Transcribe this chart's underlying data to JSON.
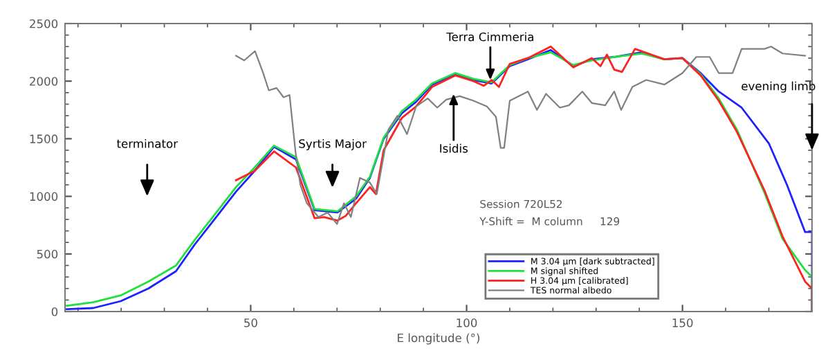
{
  "chart_data": {
    "type": "line",
    "xlabel": "E longitude (°)",
    "xlim": [
      7,
      180
    ],
    "ylim": [
      0,
      2500
    ],
    "xticks": [
      50,
      100,
      150
    ],
    "yticks": [
      0,
      500,
      1000,
      1500,
      2000,
      2500
    ],
    "grid": false,
    "legend": "bottom right",
    "marker": "none",
    "line_style": "solid",
    "series": [
      {
        "name": "M 3.04 μm [dark subtracted]",
        "color": "#2020ff",
        "x": [
          7.4,
          13.5,
          19.9,
          26.3,
          32.7,
          37,
          41.2,
          46.6,
          50.9,
          55.4,
          60.5,
          64.8,
          70.1,
          74.4,
          77.6,
          80.8,
          85,
          88.3,
          92,
          97.4,
          101.6,
          105.8,
          110,
          114.2,
          119.5,
          124.7,
          129,
          134.2,
          140.5,
          145.8,
          150,
          154.2,
          158.4,
          163.7,
          170,
          174.2,
          178.4,
          180,
          180
        ],
        "values": [
          20,
          30,
          90,
          200,
          350,
          580,
          780,
          1040,
          1220,
          1430,
          1320,
          880,
          860,
          980,
          1160,
          1500,
          1720,
          1820,
          1970,
          2060,
          2010,
          1980,
          2130,
          2190,
          2270,
          2130,
          2190,
          2210,
          2250,
          2190,
          2200,
          2070,
          1910,
          1770,
          1460,
          1100,
          690,
          690,
          0
        ]
      },
      {
        "name": "M signal shifted",
        "color": "#20e040",
        "x": [
          7.4,
          13.5,
          19.9,
          26.3,
          32.7,
          37,
          41.2,
          46.6,
          50.9,
          55.4,
          60.5,
          64.8,
          70.1,
          74.4,
          77.6,
          80.8,
          85,
          88.3,
          92,
          97.4,
          101.6,
          105.8,
          110,
          114.2,
          119.5,
          124.7,
          129,
          134.2,
          140.5,
          145.8,
          150,
          154.2,
          158.4,
          162.6,
          169,
          173.2,
          178.4,
          180,
          180
        ],
        "values": [
          50,
          80,
          140,
          260,
          400,
          620,
          820,
          1080,
          1250,
          1440,
          1340,
          890,
          870,
          1000,
          1170,
          1510,
          1740,
          1840,
          1980,
          2070,
          2020,
          1990,
          2140,
          2200,
          2250,
          2140,
          2180,
          2210,
          2240,
          2190,
          2200,
          2060,
          1850,
          1580,
          1030,
          630,
          360,
          300,
          0
        ]
      },
      {
        "name": "H 3.04 μm [calibrated]",
        "color": "#ff2020",
        "x": [
          46.6,
          50.9,
          55.4,
          60.5,
          64.8,
          67,
          70.1,
          72,
          74.4,
          77.6,
          79,
          80.8,
          85,
          88.3,
          92,
          97.4,
          101.6,
          104,
          105.8,
          107.5,
          110,
          114.2,
          119.5,
          124.7,
          129,
          131,
          132.5,
          134.2,
          136,
          139,
          145.8,
          150,
          154.2,
          158.4,
          162.6,
          169,
          173.2,
          178.4,
          180,
          180
        ],
        "values": [
          1140,
          1220,
          1390,
          1250,
          810,
          820,
          790,
          830,
          940,
          1080,
          1020,
          1400,
          1680,
          1780,
          1950,
          2050,
          2000,
          1960,
          2010,
          1950,
          2150,
          2200,
          2300,
          2120,
          2200,
          2130,
          2230,
          2100,
          2080,
          2280,
          2190,
          2200,
          2050,
          1830,
          1560,
          1050,
          650,
          260,
          200,
          0
        ]
      },
      {
        "name": "TES normal albedo",
        "color": "#808080",
        "x": [
          46.6,
          48.5,
          51,
          52.8,
          54.2,
          56,
          57.6,
          59,
          60.4,
          61.5,
          63,
          65.7,
          67.8,
          70,
          71.6,
          73.2,
          75.3,
          77.6,
          79.2,
          81.9,
          84,
          86.2,
          88.3,
          91,
          93.2,
          95.3,
          98.4,
          101.6,
          104.7,
          106.8,
          107.9,
          108.7,
          110,
          114.2,
          116.3,
          118.4,
          121.6,
          123.7,
          126.8,
          129,
          132.1,
          134.2,
          135.8,
          138.4,
          141.6,
          145.8,
          150,
          153.2,
          156.3,
          158.4,
          161.6,
          163.7,
          169,
          170.5,
          173.2,
          178.4
        ],
        "values": [
          2220,
          2180,
          2260,
          2080,
          1920,
          1940,
          1860,
          1880,
          1380,
          1100,
          940,
          820,
          860,
          760,
          940,
          820,
          1160,
          1120,
          1020,
          1580,
          1700,
          1540,
          1780,
          1850,
          1770,
          1840,
          1870,
          1830,
          1780,
          1690,
          1420,
          1420,
          1830,
          1910,
          1750,
          1890,
          1770,
          1790,
          1910,
          1810,
          1790,
          1910,
          1750,
          1950,
          2010,
          1970,
          2070,
          2210,
          2210,
          2070,
          2070,
          2280,
          2280,
          2300,
          2240,
          2220
        ]
      }
    ],
    "annotations": [
      "terminator",
      "Syrtis Major",
      {
        "text": "Terra Cimmeria",
        "x": 105.5,
        "y": 2010
      },
      {
        "text": "Isidis",
        "x": 97,
        "y": 1890
      },
      "evening limb",
      "Session 720L52",
      "Y-Shift =  M column     129"
    ]
  }
}
